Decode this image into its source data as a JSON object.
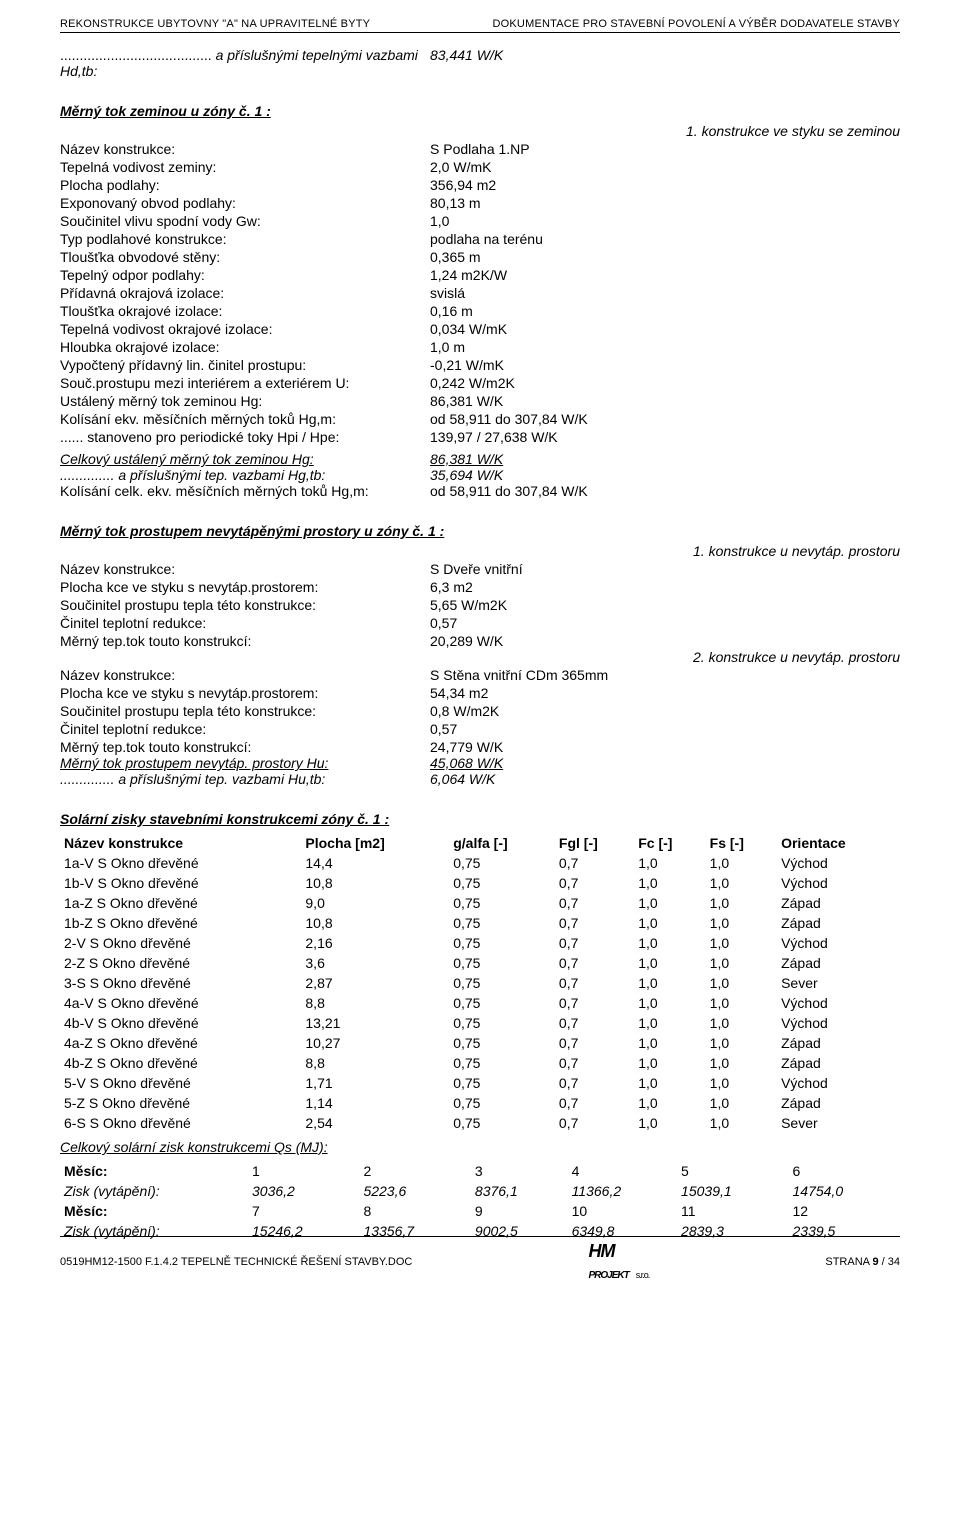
{
  "header": {
    "left": "REKONSTRUKCE UBYTOVNY \"A\" NA UPRAVITELNÉ BYTY",
    "right": "DOKUMENTACE PRO STAVEBNÍ POVOLENÍ A VÝBĚR DODAVATELE STAVBY"
  },
  "intro_line": {
    "prefix": ".......................................",
    "label": " a příslušnými tepelnými vazbami Hd,tb:",
    "value": "83,441 W/K"
  },
  "zem": {
    "title": "Měrný tok zeminou u zóny č. 1 :",
    "right_note": "1. konstrukce ve styku se zeminou",
    "rows": [
      {
        "k": "Název konstrukce:",
        "v": "S Podlaha 1.NP"
      },
      {
        "k": "Tepelná vodivost zeminy:",
        "v": "2,0 W/mK"
      },
      {
        "k": "Plocha podlahy:",
        "v": "356,94 m2"
      },
      {
        "k": "Exponovaný obvod podlahy:",
        "v": "80,13 m"
      },
      {
        "k": "Součinitel vlivu spodní vody Gw:",
        "v": "1,0"
      },
      {
        "k": "Typ podlahové konstrukce:",
        "v": "podlaha na terénu"
      },
      {
        "k": "Tloušťka obvodové stěny:",
        "v": "0,365 m"
      },
      {
        "k": "Tepelný odpor podlahy:",
        "v": "1,24 m2K/W"
      },
      {
        "k": "Přídavná okrajová izolace:",
        "v": "svislá"
      },
      {
        "k": "Tloušťka okrajové izolace:",
        "v": "0,16 m"
      },
      {
        "k": "Tepelná vodivost okrajové izolace:",
        "v": "0,034 W/mK"
      },
      {
        "k": "Hloubka okrajové izolace:",
        "v": "1,0 m"
      },
      {
        "k": "Vypočtený přídavný lin. činitel prostupu:",
        "v": "-0,21 W/mK"
      },
      {
        "k": "Souč.prostupu mezi interiérem a exteriérem U:",
        "v": "0,242 W/m2K"
      },
      {
        "k": "Ustálený měrný tok zeminou Hg:",
        "v": "86,381 W/K"
      },
      {
        "k": "Kolísání ekv. měsíčních měrných toků Hg,m:",
        "v": "od 58,911 do 307,84 W/K"
      },
      {
        "k": "...... stanoveno pro periodické toky Hpi / Hpe:",
        "v": "139,97 / 27,638 W/K"
      }
    ],
    "total": {
      "k": "Celkový ustálený měrný tok zeminou Hg:",
      "v": "86,381 W/K"
    },
    "total2": {
      "k": ".............. a příslušnými tep. vazbami Hg,tb:",
      "v": "35,694 W/K"
    },
    "total3": {
      "k": "Kolísání celk. ekv. měsíčních měrných toků Hg,m:",
      "v": "od 58,911 do 307,84 W/K"
    }
  },
  "nevyt": {
    "title": "Měrný tok prostupem nevytápěnými prostory u zóny č. 1 :",
    "note1": "1. konstrukce u nevytáp. prostoru",
    "block1": [
      {
        "k": "Název konstrukce:",
        "v": "S Dveře vnitřní"
      },
      {
        "k": "Plocha kce ve styku s nevytáp.prostorem:",
        "v": "6,3 m2"
      },
      {
        "k": "Součinitel prostupu tepla této konstrukce:",
        "v": "5,65 W/m2K"
      },
      {
        "k": "Činitel teplotní redukce:",
        "v": "0,57"
      },
      {
        "k": "Měrný tep.tok touto konstrukcí:",
        "v": "20,289 W/K"
      }
    ],
    "note2": "2. konstrukce u nevytáp. prostoru",
    "block2": [
      {
        "k": "Název konstrukce:",
        "v": "S Stěna vnitřní CDm 365mm"
      },
      {
        "k": "Plocha kce ve styku s nevytáp.prostorem:",
        "v": "54,34 m2"
      },
      {
        "k": "Součinitel prostupu tepla této konstrukce:",
        "v": "0,8 W/m2K"
      },
      {
        "k": "Činitel teplotní redukce:",
        "v": "0,57"
      },
      {
        "k": "Měrný tep.tok touto konstrukcí:",
        "v": "24,779 W/K"
      }
    ],
    "sum1": {
      "k": "Měrný tok prostupem nevytáp. prostory Hu:",
      "v": "45,068 W/K"
    },
    "sum2": {
      "k": ".............. a příslušnými tep. vazbami Hu,tb:",
      "v": "6,064 W/K"
    }
  },
  "solar": {
    "title": "Solární zisky stavebními konstrukcemi zóny č. 1 :",
    "head": [
      "Název konstrukce",
      "Plocha [m2]",
      "g/alfa [-]",
      "Fgl [-]",
      "Fc [-]",
      "Fs [-]",
      "Orientace"
    ],
    "rows": [
      [
        "1a-V S Okno dřevěné",
        "14,4",
        "0,75",
        "0,7",
        "1,0",
        "1,0",
        "Východ"
      ],
      [
        "1b-V S Okno dřevěné",
        "10,8",
        "0,75",
        "0,7",
        "1,0",
        "1,0",
        "Východ"
      ],
      [
        "1a-Z S Okno dřevěné",
        "9,0",
        "0,75",
        "0,7",
        "1,0",
        "1,0",
        "Západ"
      ],
      [
        "1b-Z S Okno dřevěné",
        "10,8",
        "0,75",
        "0,7",
        "1,0",
        "1,0",
        "Západ"
      ],
      [
        "2-V S Okno dřevěné",
        "2,16",
        "0,75",
        "0,7",
        "1,0",
        "1,0",
        "Východ"
      ],
      [
        "2-Z S Okno dřevěné",
        "3,6",
        "0,75",
        "0,7",
        "1,0",
        "1,0",
        "Západ"
      ],
      [
        "3-S S Okno dřevěné",
        "2,87",
        "0,75",
        "0,7",
        "1,0",
        "1,0",
        "Sever"
      ],
      [
        "4a-V S Okno dřevěné",
        "8,8",
        "0,75",
        "0,7",
        "1,0",
        "1,0",
        "Východ"
      ],
      [
        "4b-V S Okno dřevěné",
        "13,21",
        "0,75",
        "0,7",
        "1,0",
        "1,0",
        "Východ"
      ],
      [
        "4a-Z S Okno dřevěné",
        "10,27",
        "0,75",
        "0,7",
        "1,0",
        "1,0",
        "Západ"
      ],
      [
        "4b-Z S Okno dřevěné",
        "8,8",
        "0,75",
        "0,7",
        "1,0",
        "1,0",
        "Západ"
      ],
      [
        "5-V S Okno dřevěné",
        "1,71",
        "0,75",
        "0,7",
        "1,0",
        "1,0",
        "Východ"
      ],
      [
        "5-Z S Okno dřevěné",
        "1,14",
        "0,75",
        "0,7",
        "1,0",
        "1,0",
        "Západ"
      ],
      [
        "6-S S Okno dřevěné",
        "2,54",
        "0,75",
        "0,7",
        "1,0",
        "1,0",
        "Sever"
      ]
    ],
    "total_label": "Celkový solární zisk konstrukcemi Qs (MJ):",
    "months1": {
      "head": "Měsíc:",
      "nums": [
        "1",
        "2",
        "3",
        "4",
        "5",
        "6"
      ]
    },
    "gain1": {
      "head": "Zisk (vytápění):",
      "nums": [
        "3036,2",
        "5223,6",
        "8376,1",
        "11366,2",
        "15039,1",
        "14754,0"
      ]
    },
    "months2": {
      "head": "Měsíc:",
      "nums": [
        "7",
        "8",
        "9",
        "10",
        "11",
        "12"
      ]
    },
    "gain2": {
      "head": "Zisk (vytápění):",
      "nums": [
        "15246,2",
        "13356,7",
        "9002,5",
        "6349,8",
        "2839,3",
        "2339,5"
      ]
    }
  },
  "footer": {
    "left": "0519HM12-1500 F.1.4.2 TEPELNĚ TECHNICKÉ ŘEŠENÍ STAVBY.DOC",
    "logo_main": "HM",
    "logo_sub": "PROJEKT",
    "logo_small": "s.r.o.",
    "right": "STRANA 9 / 34"
  }
}
